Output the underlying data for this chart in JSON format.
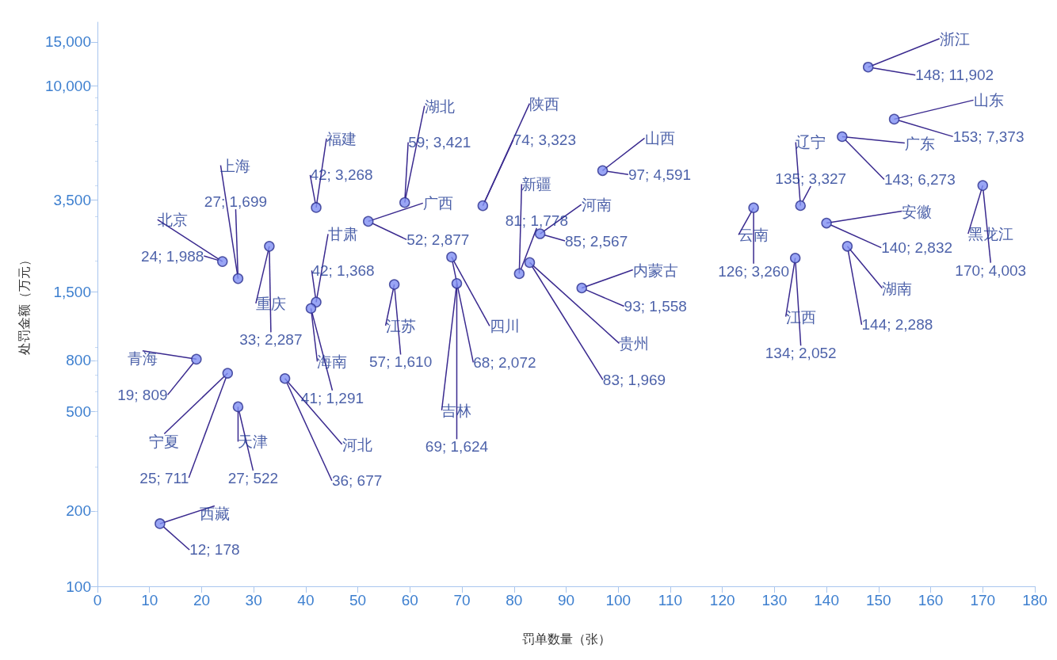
{
  "chart_data": {
    "type": "scatter",
    "xlabel": "罚单数量（张）",
    "ylabel": "处罚金额（万元）",
    "xlim": [
      0,
      180
    ],
    "xticks": [
      0,
      10,
      20,
      30,
      40,
      50,
      60,
      70,
      80,
      90,
      100,
      110,
      120,
      130,
      140,
      150,
      160,
      170,
      180
    ],
    "ylim": [
      100,
      18000
    ],
    "yticks": [
      100,
      200,
      500,
      800,
      {
        "value": 1500,
        "label": "1,500"
      },
      {
        "value": 3500,
        "label": "3,500"
      },
      {
        "value": 10000,
        "label": "10,000"
      },
      {
        "value": 15000,
        "label": "15,000"
      }
    ],
    "log": "y",
    "grid": false,
    "marker": "circle",
    "series": [
      {
        "color": "#7f8ef2",
        "x": [
          148,
          153,
          143,
          170,
          135,
          140,
          126,
          134,
          144,
          97,
          85,
          93,
          83,
          81,
          74,
          59,
          52,
          68,
          69,
          57,
          42,
          42,
          41,
          27,
          24,
          33,
          19,
          25,
          27,
          36,
          12
        ],
        "values": [
          11902,
          7373,
          6273,
          4003,
          3327,
          2832,
          3260,
          2052,
          2288,
          4591,
          2567,
          1558,
          1969,
          1778,
          3323,
          3421,
          2877,
          2072,
          1624,
          1610,
          3268,
          1368,
          1291,
          1699,
          1988,
          2287,
          809,
          711,
          522,
          677,
          178
        ],
        "value_labels": [
          "148; 11,902",
          "153; 7,373",
          "143; 6,273",
          "170; 4,003",
          "135; 3,327",
          "140; 2,832",
          "126; 3,260",
          "134; 2,052",
          "144; 2,288",
          "97; 4,591",
          "85; 2,567",
          "93; 1,558",
          "83; 1,969",
          "81; 1,778",
          "74; 3,323",
          "59; 3,421",
          "52; 2,877",
          "68; 2,072",
          "69; 1,624",
          "57; 1,610",
          "42; 3,268",
          "42; 1,368",
          "41; 1,291",
          "27; 1,699",
          "24; 1,988",
          "33; 2,287",
          "19; 809",
          "25; 711",
          "27; 522",
          "36; 677",
          "12; 178"
        ]
      }
    ],
    "annotations": [
      {
        "text": "浙江",
        "x": 148,
        "y": 11902
      },
      {
        "text": "山东",
        "x": 153,
        "y": 7373
      },
      {
        "text": "广东",
        "x": 143,
        "y": 6273
      },
      {
        "text": "黑龙江",
        "x": 170,
        "y": 4003
      },
      {
        "text": "辽宁",
        "x": 135,
        "y": 3327
      },
      {
        "text": "安徽",
        "x": 140,
        "y": 2832
      },
      {
        "text": "云南",
        "x": 126,
        "y": 3260
      },
      {
        "text": "江西",
        "x": 134,
        "y": 2052
      },
      {
        "text": "湖南",
        "x": 144,
        "y": 2288
      },
      {
        "text": "山西",
        "x": 97,
        "y": 4591
      },
      {
        "text": "河南",
        "x": 85,
        "y": 2567
      },
      {
        "text": "内蒙古",
        "x": 93,
        "y": 1558
      },
      {
        "text": "贵州",
        "x": 83,
        "y": 1969
      },
      {
        "text": "新疆",
        "x": 81,
        "y": 1778
      },
      {
        "text": "陕西",
        "x": 74,
        "y": 3323
      },
      {
        "text": "湖北",
        "x": 59,
        "y": 3421
      },
      {
        "text": "广西",
        "x": 52,
        "y": 2877
      },
      {
        "text": "四川",
        "x": 68,
        "y": 2072
      },
      {
        "text": "吉林",
        "x": 69,
        "y": 1624
      },
      {
        "text": "江苏",
        "x": 57,
        "y": 1610
      },
      {
        "text": "福建",
        "x": 42,
        "y": 3268
      },
      {
        "text": "甘肃",
        "x": 42,
        "y": 1368
      },
      {
        "text": "海南",
        "x": 41,
        "y": 1291
      },
      {
        "text": "上海",
        "x": 27,
        "y": 1699
      },
      {
        "text": "北京",
        "x": 24,
        "y": 1988
      },
      {
        "text": "重庆",
        "x": 33,
        "y": 2287
      },
      {
        "text": "青海",
        "x": 19,
        "y": 809
      },
      {
        "text": "宁夏",
        "x": 25,
        "y": 711
      },
      {
        "text": "天津",
        "x": 27,
        "y": 522
      },
      {
        "text": "河北",
        "x": 36,
        "y": 677
      },
      {
        "text": "西藏",
        "x": 12,
        "y": 178
      }
    ]
  }
}
